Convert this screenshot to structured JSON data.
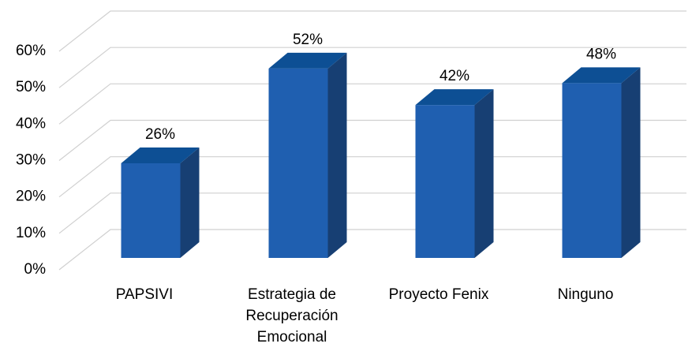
{
  "chart_data": {
    "type": "bar3d",
    "categories": [
      "PAPSIVI",
      "Estrategia de Recuperación Emocional",
      "Proyecto Fenix",
      "Ninguno"
    ],
    "values": [
      26,
      52,
      42,
      48
    ],
    "value_labels": [
      "26%",
      "52%",
      "42%",
      "48%"
    ],
    "color": "#1f5fb0",
    "ylim": [
      0,
      60
    ],
    "yticks": [
      {
        "value": 0,
        "label": "0%"
      },
      {
        "value": 10,
        "label": "10%"
      },
      {
        "value": 20,
        "label": "20%"
      },
      {
        "value": 30,
        "label": "30%"
      },
      {
        "value": 40,
        "label": "40%"
      },
      {
        "value": 50,
        "label": "50%"
      },
      {
        "value": 60,
        "label": "60%"
      }
    ],
    "grid": true
  }
}
